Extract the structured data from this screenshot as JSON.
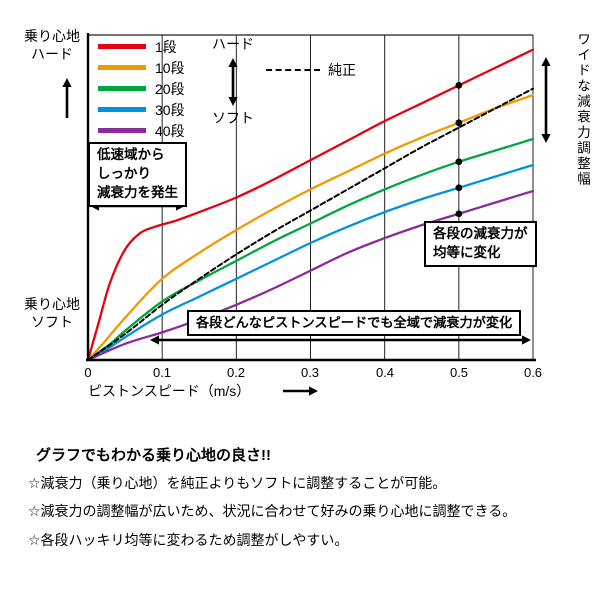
{
  "chart_data": {
    "type": "line",
    "title": "",
    "xlabel": "ピストンスピード（m/s）",
    "x_ticks": [
      "0",
      "0.1",
      "0.2",
      "0.3",
      "0.4",
      "0.5",
      "0.6"
    ],
    "xlim": [
      0,
      0.6
    ],
    "ylim": [
      0,
      100
    ],
    "grid": "vertical-only",
    "legend_position": "top-left-inside",
    "y_axis": {
      "top": "乗り心地\nハード",
      "bottom": "乗り心地\nソフト"
    },
    "series": [
      {
        "name": "1段",
        "color": "#e60012",
        "style": "solid",
        "points": [
          [
            0,
            0
          ],
          [
            0.015,
            12
          ],
          [
            0.03,
            24
          ],
          [
            0.05,
            34
          ],
          [
            0.07,
            39
          ],
          [
            0.09,
            41
          ],
          [
            0.12,
            43
          ],
          [
            0.15,
            45.5
          ],
          [
            0.2,
            50
          ],
          [
            0.25,
            55.5
          ],
          [
            0.3,
            61.5
          ],
          [
            0.35,
            67.5
          ],
          [
            0.4,
            73.5
          ],
          [
            0.45,
            79
          ],
          [
            0.5,
            84.5
          ],
          [
            0.55,
            90
          ],
          [
            0.6,
            95.5
          ]
        ]
      },
      {
        "name": "10段",
        "color": "#f39800",
        "style": "solid",
        "points": [
          [
            0,
            0
          ],
          [
            0.02,
            5
          ],
          [
            0.05,
            13
          ],
          [
            0.1,
            25
          ],
          [
            0.15,
            33
          ],
          [
            0.2,
            40
          ],
          [
            0.25,
            46.5
          ],
          [
            0.3,
            52.5
          ],
          [
            0.35,
            58
          ],
          [
            0.4,
            63.5
          ],
          [
            0.45,
            68.5
          ],
          [
            0.5,
            73
          ],
          [
            0.55,
            77.5
          ],
          [
            0.6,
            81.5
          ]
        ]
      },
      {
        "name": "20段",
        "color": "#00a63e",
        "style": "solid",
        "points": [
          [
            0,
            0
          ],
          [
            0.03,
            5
          ],
          [
            0.05,
            9
          ],
          [
            0.1,
            18
          ],
          [
            0.15,
            24.5
          ],
          [
            0.2,
            30.5
          ],
          [
            0.25,
            36.5
          ],
          [
            0.3,
            42
          ],
          [
            0.35,
            47.5
          ],
          [
            0.4,
            52.5
          ],
          [
            0.45,
            57
          ],
          [
            0.5,
            61
          ],
          [
            0.55,
            64.5
          ],
          [
            0.6,
            68
          ]
        ]
      },
      {
        "name": "30段",
        "color": "#0093dd",
        "style": "solid",
        "points": [
          [
            0,
            0
          ],
          [
            0.03,
            4
          ],
          [
            0.05,
            7
          ],
          [
            0.1,
            14
          ],
          [
            0.15,
            19.5
          ],
          [
            0.2,
            25
          ],
          [
            0.25,
            30.5
          ],
          [
            0.3,
            36
          ],
          [
            0.35,
            41
          ],
          [
            0.4,
            45.5
          ],
          [
            0.45,
            49.5
          ],
          [
            0.5,
            53
          ],
          [
            0.55,
            56.5
          ],
          [
            0.6,
            60
          ]
        ]
      },
      {
        "name": "40段",
        "color": "#8a2a9b",
        "style": "solid",
        "points": [
          [
            0,
            0
          ],
          [
            0.05,
            5
          ],
          [
            0.1,
            8.5
          ],
          [
            0.15,
            12.5
          ],
          [
            0.2,
            17
          ],
          [
            0.25,
            22
          ],
          [
            0.3,
            27.5
          ],
          [
            0.35,
            33
          ],
          [
            0.4,
            37.5
          ],
          [
            0.45,
            41.5
          ],
          [
            0.5,
            45
          ],
          [
            0.55,
            48.5
          ],
          [
            0.6,
            52
          ]
        ]
      },
      {
        "name": "純正",
        "color": "#000000",
        "style": "dashed",
        "points": [
          [
            0,
            0
          ],
          [
            0.05,
            8
          ],
          [
            0.1,
            17
          ],
          [
            0.15,
            25
          ],
          [
            0.2,
            32.5
          ],
          [
            0.25,
            39.5
          ],
          [
            0.3,
            46
          ],
          [
            0.35,
            52.5
          ],
          [
            0.4,
            59
          ],
          [
            0.45,
            65.5
          ],
          [
            0.5,
            71.5
          ],
          [
            0.55,
            77.5
          ],
          [
            0.6,
            83.5
          ]
        ]
      }
    ],
    "dots": {
      "x": 0.5,
      "values": [
        84.5,
        73,
        61,
        53,
        45
      ]
    }
  },
  "legend": {
    "hard_label": "ハード",
    "soft_label": "ソフト"
  },
  "annotations": {
    "low_speed": "低速域から\nしっかり\n減衰力を発生",
    "equal_steps": "各段の減衰力が\n均等に変化",
    "full_range": "各段どんなピストンスピードでも全域で減衰力が変化",
    "wide_adjust": "ワイドな減衰力調整幅"
  },
  "footer": {
    "title": "グラフでもわかる乗り心地の良さ!!",
    "bullets": [
      "☆減衰力（乗り心地）を純正よりもソフトに調整することが可能。",
      "☆減衰力の調整幅が広いため、状況に合わせて好みの乗り心地に調整できる。",
      "☆各段ハッキリ均等に変わるため調整がしやすい。"
    ]
  }
}
